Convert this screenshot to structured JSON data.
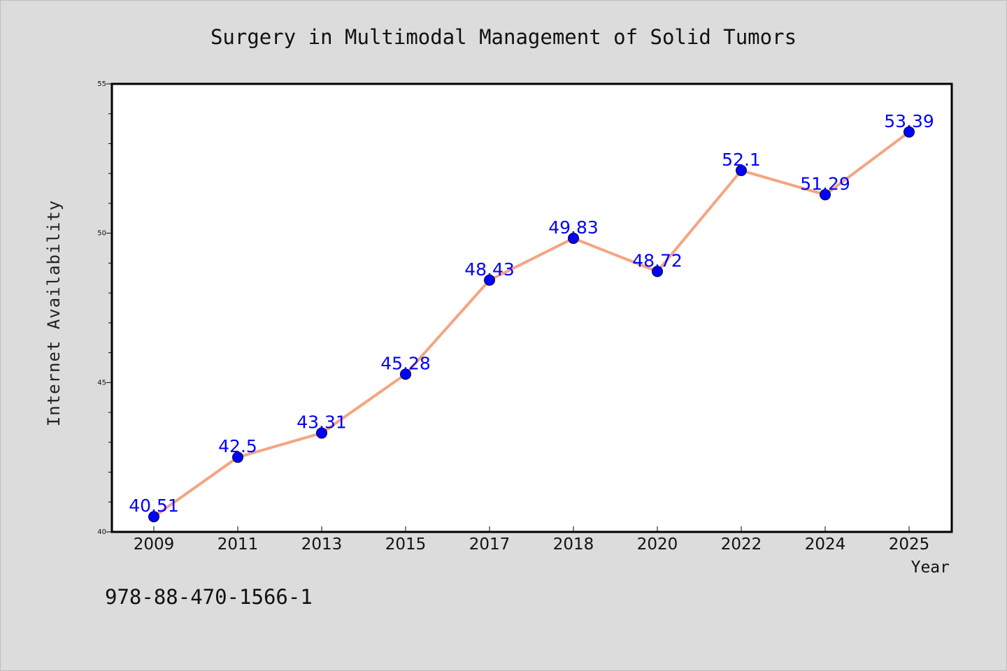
{
  "chart_data": {
    "type": "line",
    "title": "Surgery in Multimodal Management of Solid Tumors",
    "xlabel": "Year",
    "ylabel": "Internet Availability",
    "categories": [
      "2009",
      "2011",
      "2013",
      "2015",
      "2017",
      "2018",
      "2020",
      "2022",
      "2024",
      "2025"
    ],
    "values": [
      40.51,
      42.5,
      43.31,
      45.28,
      48.43,
      49.83,
      48.72,
      52.1,
      51.29,
      53.39
    ],
    "value_labels": [
      "40.51",
      "42.5",
      "43.31",
      "45.28",
      "48.43",
      "49.83",
      "48.72",
      "52.1",
      "51.29",
      "53.39"
    ],
    "ylim": [
      40,
      55
    ],
    "yticks": [
      "40",
      "45",
      "50",
      "55"
    ],
    "grid": false,
    "legend": "none",
    "line_color": "#f4a582",
    "marker_color": "#0000ff"
  },
  "footnote": "978-88-470-1566-1"
}
